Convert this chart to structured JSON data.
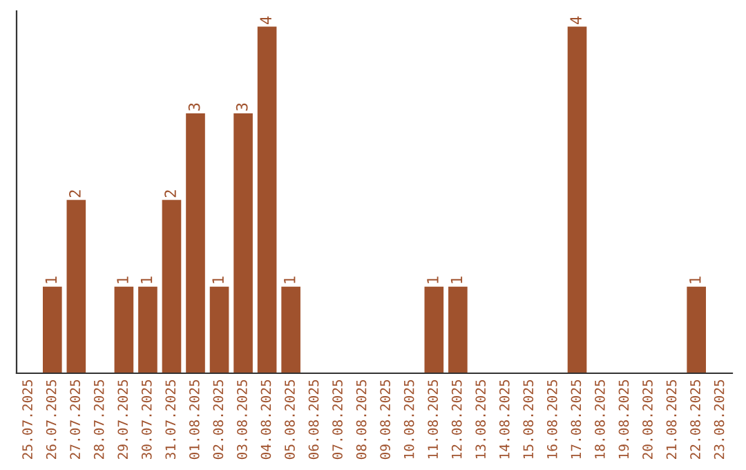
{
  "chart_data": {
    "type": "bar",
    "categories": [
      "25.07.2025",
      "26.07.2025",
      "27.07.2025",
      "28.07.2025",
      "29.07.2025",
      "30.07.2025",
      "31.07.2025",
      "01.08.2025",
      "02.08.2025",
      "03.08.2025",
      "04.08.2025",
      "05.08.2025",
      "06.08.2025",
      "07.08.2025",
      "08.08.2025",
      "09.08.2025",
      "10.08.2025",
      "11.08.2025",
      "12.08.2025",
      "13.08.2025",
      "14.08.2025",
      "15.08.2025",
      "16.08.2025",
      "17.08.2025",
      "18.08.2025",
      "19.08.2025",
      "20.08.2025",
      "21.08.2025",
      "22.08.2025",
      "23.08.2025"
    ],
    "values": [
      0,
      1,
      2,
      0,
      1,
      1,
      2,
      3,
      1,
      3,
      4,
      1,
      0,
      0,
      0,
      0,
      0,
      1,
      1,
      0,
      0,
      0,
      0,
      4,
      0,
      0,
      0,
      0,
      1,
      0
    ],
    "value_labels": [
      null,
      "1",
      "2",
      null,
      "1",
      "1",
      "2",
      "3",
      "1",
      "3",
      "4",
      "1",
      null,
      null,
      null,
      null,
      null,
      "1",
      "1",
      null,
      null,
      null,
      null,
      "4",
      null,
      null,
      null,
      null,
      "1",
      null
    ],
    "color": "#a0522d",
    "grid": false,
    "tick_labels": "x"
  }
}
